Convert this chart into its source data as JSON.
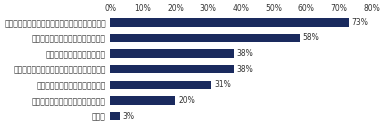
{
  "categories": [
    "定年でやめさせたくない優秀な人材を確保できる",
    "シニア世代の経験・知識が活かせる",
    "低賃金で経験者を雇用できる",
    "将来の不安が解消され、社員の定着に繋がる",
    "若手社員に向けた指導体制の強化",
    "「継続雇用制度奨励金」がもらえる",
    "その他"
  ],
  "values": [
    73,
    58,
    38,
    38,
    31,
    20,
    3
  ],
  "bar_color": "#1a2a5e",
  "xlim": [
    0,
    80
  ],
  "xticks": [
    0,
    10,
    20,
    30,
    40,
    50,
    60,
    70,
    80
  ],
  "xlabel_fontsize": 5.5,
  "label_fontsize": 5.5,
  "value_fontsize": 5.5,
  "bar_height": 0.55,
  "background_color": "#ffffff",
  "text_color": "#333333"
}
